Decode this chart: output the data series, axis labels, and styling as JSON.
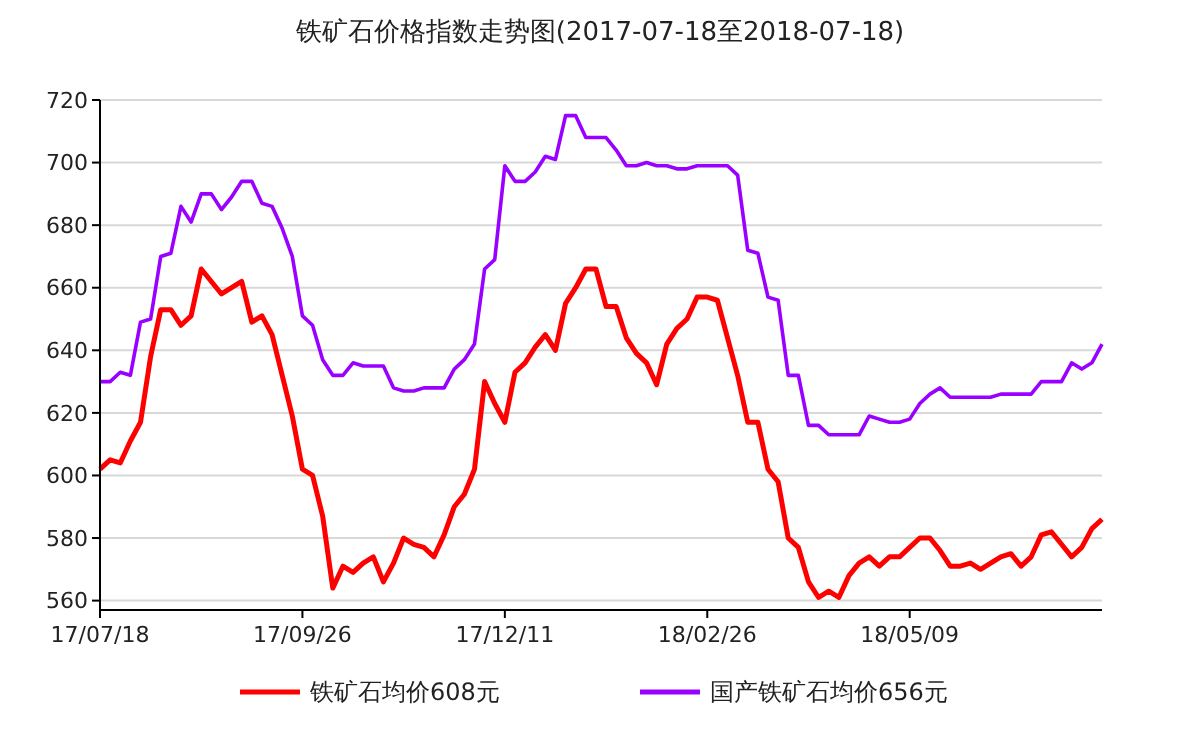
{
  "chart_data": {
    "type": "line",
    "title": "铁矿石价格指数走势图(2017-07-18至2018-07-18)",
    "categories": [
      "17/07/18",
      null,
      null,
      null,
      null,
      null,
      null,
      null,
      null,
      null,
      null,
      null,
      null,
      null,
      null,
      null,
      null,
      null,
      null,
      null,
      "17/09/26",
      null,
      null,
      null,
      null,
      null,
      null,
      null,
      null,
      null,
      null,
      null,
      null,
      null,
      null,
      null,
      null,
      null,
      null,
      null,
      "17/12/11",
      null,
      null,
      null,
      null,
      null,
      null,
      null,
      null,
      null,
      null,
      null,
      null,
      null,
      null,
      null,
      null,
      null,
      null,
      null,
      "18/02/26",
      null,
      null,
      null,
      null,
      null,
      null,
      null,
      null,
      null,
      null,
      null,
      null,
      null,
      null,
      null,
      null,
      null,
      null,
      null,
      "18/05/09",
      null,
      null,
      null,
      null,
      null,
      null,
      null,
      null,
      null,
      null,
      null,
      null,
      null,
      null,
      null,
      null,
      null,
      null,
      null
    ],
    "series": [
      {
        "name": "铁矿石均价608元",
        "color": "#ff0000",
        "values": [
          602,
          605,
          604,
          611,
          617,
          638,
          653,
          653,
          648,
          651,
          666,
          662,
          658,
          660,
          662,
          649,
          651,
          645,
          632,
          619,
          602,
          600,
          587,
          564,
          571,
          569,
          572,
          574,
          566,
          572,
          580,
          578,
          577,
          574,
          581,
          590,
          594,
          602,
          630,
          623,
          617,
          633,
          636,
          641,
          645,
          640,
          655,
          660,
          666,
          666,
          654,
          654,
          644,
          639,
          636,
          629,
          642,
          647,
          650,
          657,
          657,
          656,
          644,
          632,
          617,
          617,
          602,
          598,
          580,
          577,
          566,
          561,
          563,
          561,
          568,
          572,
          574,
          571,
          574,
          574,
          577,
          580,
          580,
          576,
          571,
          571,
          572,
          570,
          572,
          574,
          575,
          571,
          574,
          581,
          582,
          578,
          574,
          577,
          583,
          586
        ]
      },
      {
        "name": "国产铁矿石均价656元",
        "color": "#9900ff",
        "values": [
          630,
          630,
          633,
          632,
          649,
          650,
          670,
          671,
          686,
          681,
          690,
          690,
          685,
          689,
          694,
          694,
          687,
          686,
          679,
          670,
          651,
          648,
          637,
          632,
          632,
          636,
          635,
          635,
          635,
          628,
          627,
          627,
          628,
          628,
          628,
          634,
          637,
          642,
          666,
          669,
          699,
          694,
          694,
          697,
          702,
          701,
          715,
          715,
          708,
          708,
          708,
          704,
          699,
          699,
          700,
          699,
          699,
          698,
          698,
          699,
          699,
          699,
          699,
          696,
          672,
          671,
          657,
          656,
          632,
          632,
          616,
          616,
          613,
          613,
          613,
          613,
          619,
          618,
          617,
          617,
          618,
          623,
          626,
          628,
          625,
          625,
          625,
          625,
          625,
          626,
          626,
          626,
          626,
          630,
          630,
          630,
          636,
          634,
          636,
          642
        ]
      }
    ],
    "ylim": [
      557,
      720
    ],
    "yticks": [
      560,
      580,
      600,
      620,
      640,
      660,
      680,
      700,
      720
    ],
    "grid": "y",
    "legend": "bottom",
    "line_style": "solid",
    "marker": "none"
  }
}
